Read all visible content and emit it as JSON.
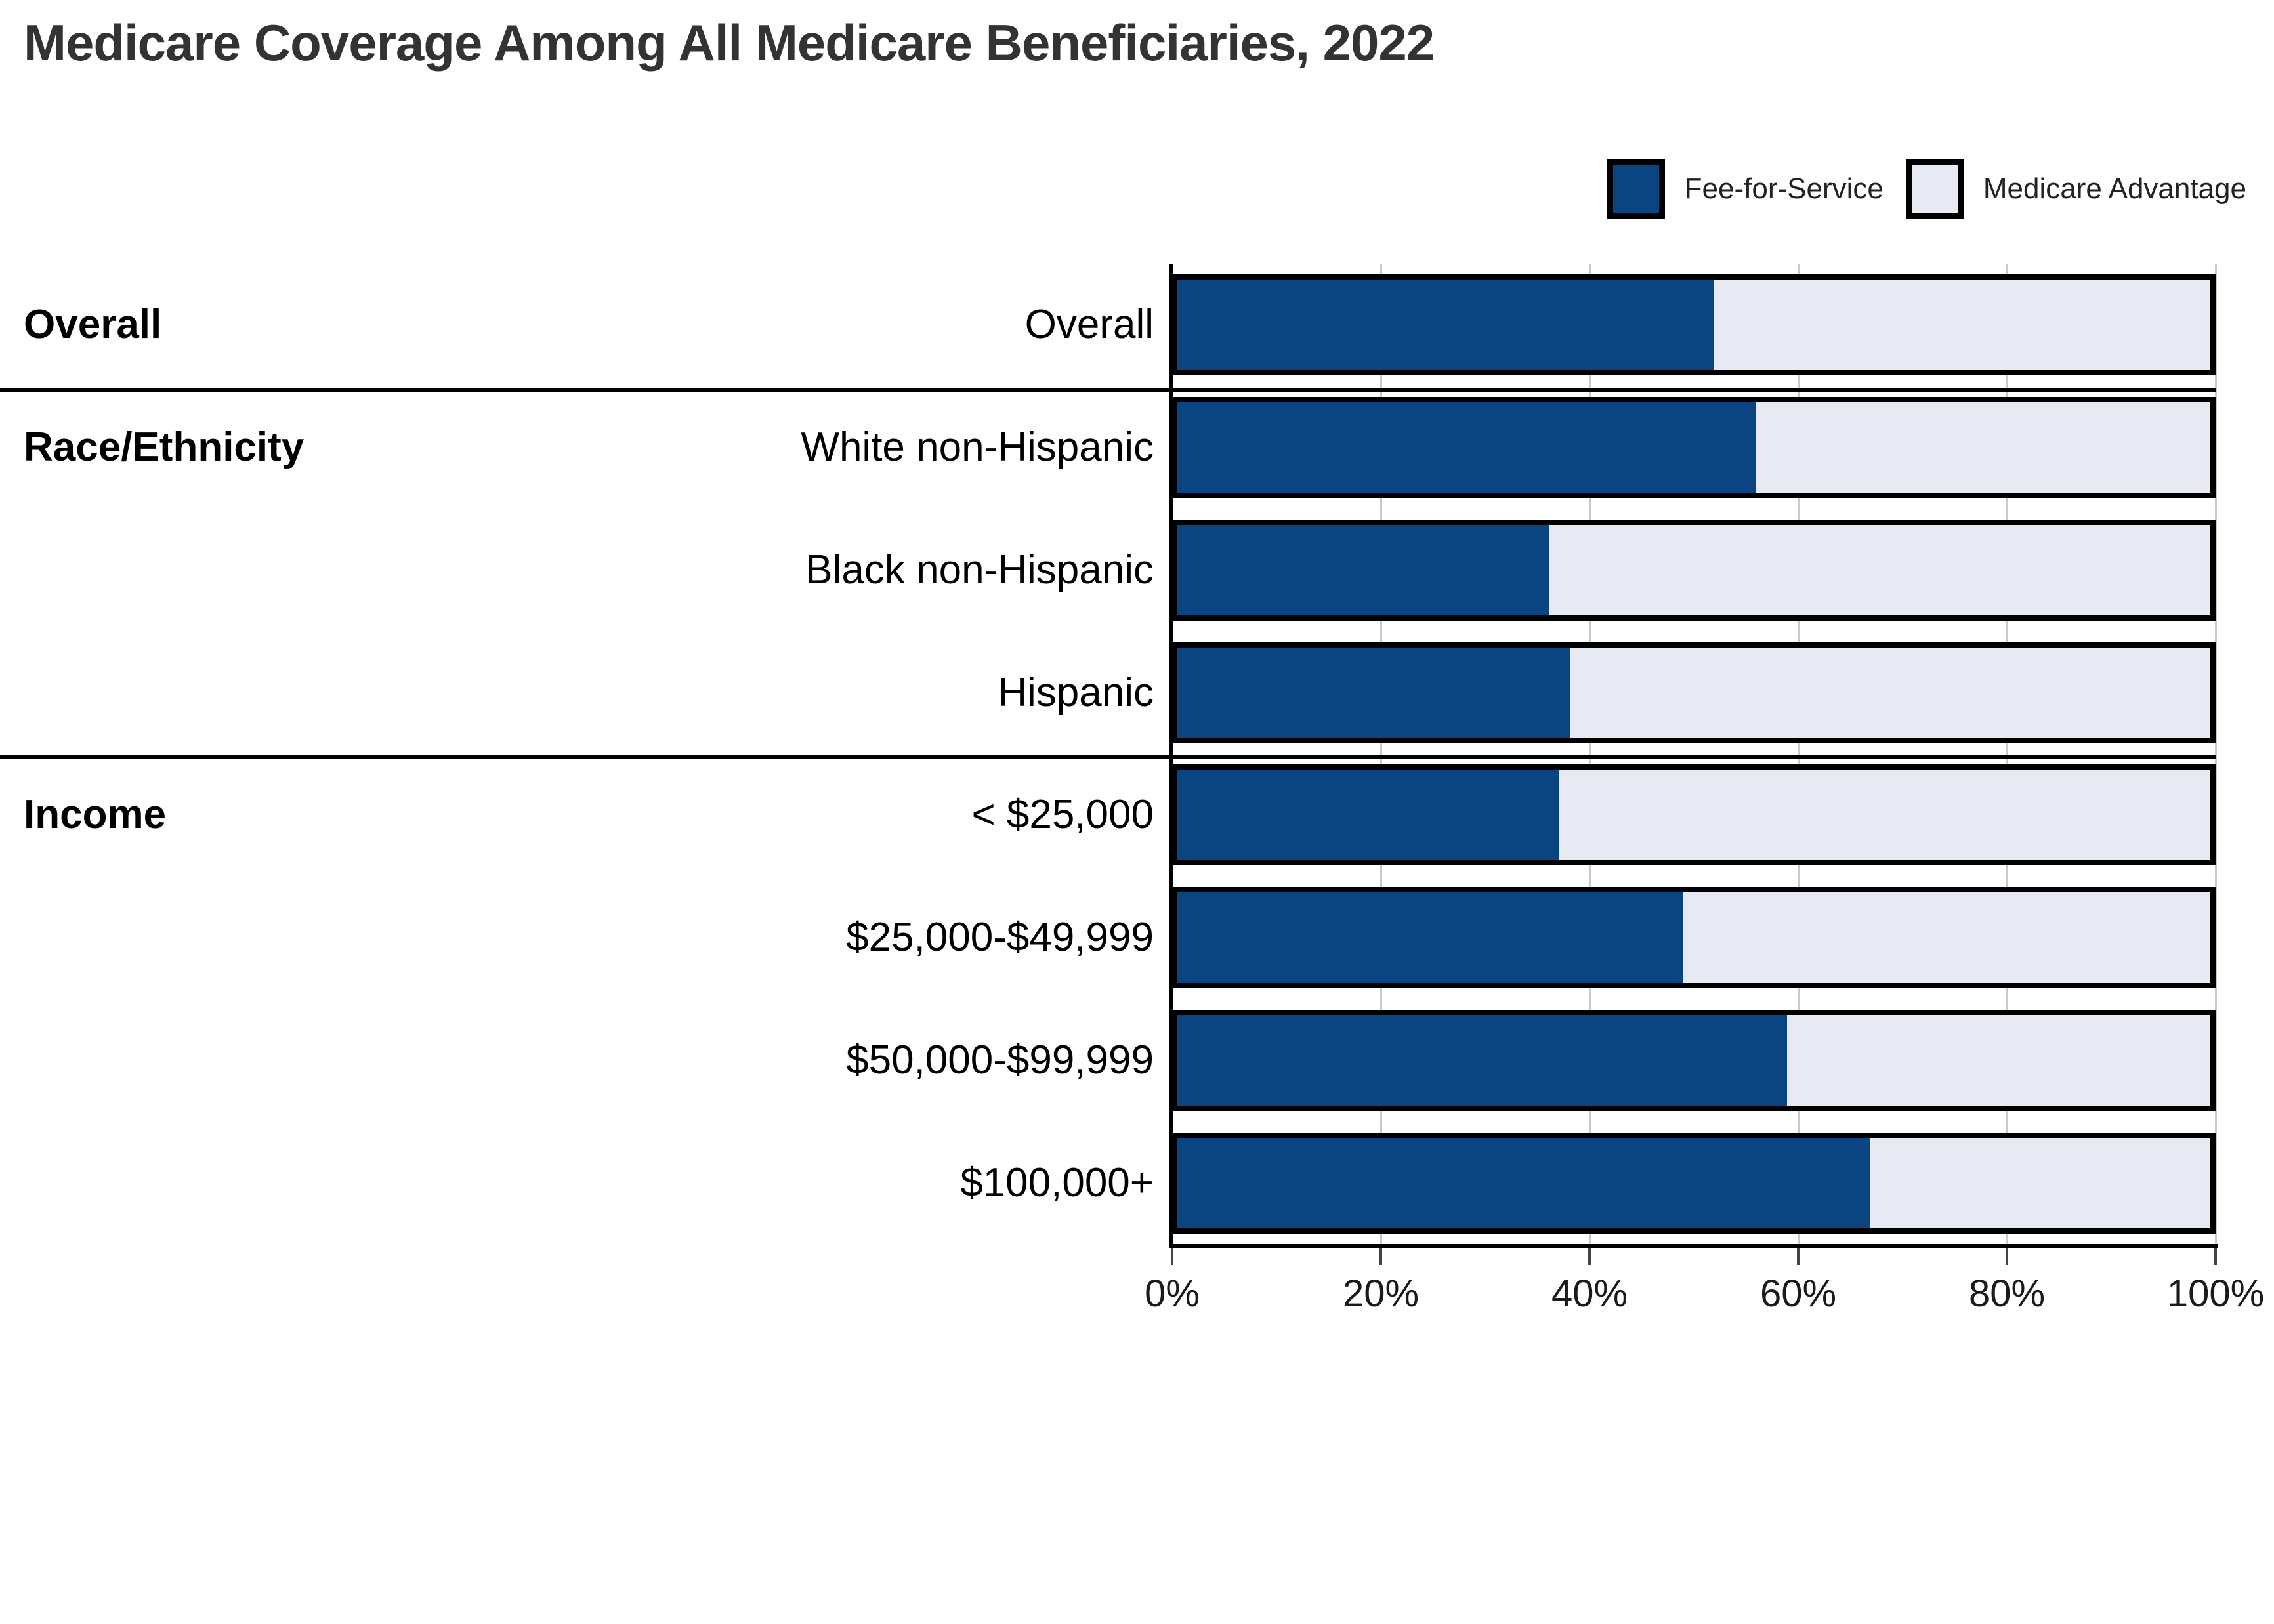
{
  "title": "Medicare Coverage Among All Medicare Beneficiaries, 2022",
  "legend": {
    "items": [
      {
        "label": "Fee-for-Service",
        "color": "#0A4581"
      },
      {
        "label": "Medicare Advantage",
        "color": "#E7EAF2"
      }
    ]
  },
  "colors": {
    "fee_for_service": "#0A4581",
    "medicare_advantage": "#E7EAF2",
    "bar_outline": "#000000",
    "gridline": "#c9c9c9",
    "title_text": "#333333"
  },
  "chart_data": {
    "type": "bar",
    "orientation": "horizontal",
    "stacked": true,
    "stacked_total": 100,
    "title": "Medicare Coverage Among All Medicare Beneficiaries, 2022",
    "categories": [
      "Overall",
      "White non-Hispanic",
      "Black non-Hispanic",
      "Hispanic",
      "< $25,000",
      "$25,000-$49,999",
      "$50,000-$99,999",
      "$100,000+"
    ],
    "groups": [
      {
        "label": "Overall",
        "rows": 1
      },
      {
        "label": "Race/Ethnicity",
        "rows": 3
      },
      {
        "label": "Income",
        "rows": 4
      }
    ],
    "series": [
      {
        "name": "Fee-for-Service",
        "color": "#0A4581",
        "values": [
          52,
          56,
          36,
          38,
          37,
          49,
          59,
          67
        ]
      },
      {
        "name": "Medicare Advantage",
        "color": "#E7EAF2",
        "values": [
          48,
          44,
          64,
          62,
          63,
          51,
          41,
          33
        ]
      }
    ],
    "xlabel": "",
    "ylabel": "",
    "xlim": [
      0,
      100
    ],
    "x_ticks": [
      "0%",
      "20%",
      "40%",
      "60%",
      "80%",
      "100%"
    ],
    "grid": true,
    "legend_position": "top-right"
  }
}
